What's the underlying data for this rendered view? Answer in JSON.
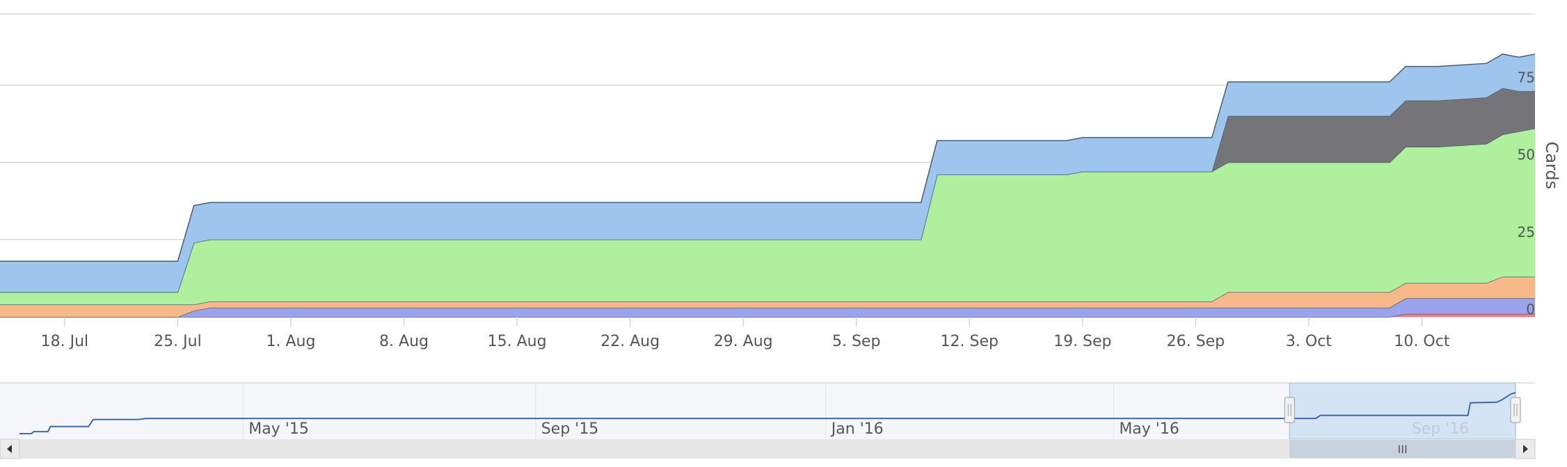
{
  "colors": {
    "backlog": "#9ec5ee",
    "in_progress": "#757478",
    "done": "#aef09e",
    "review": "#f7b98a",
    "blocked": "#9ba3ec",
    "expedite": "#f07d8a",
    "series_stroke": "#4d5a6b",
    "gridline": "#c8c8c8",
    "navigator_line": "#3c6aa8",
    "navigator_mask": "#cfe0f3",
    "scrollbar_track": "#e6e6e6",
    "scrollbar_thumb": "#c8d2de"
  },
  "chart_data": {
    "type": "area",
    "stacking": "normal",
    "ylabel": "Cards",
    "y_ticks": [
      0,
      25,
      50,
      75
    ],
    "ylim": [
      0,
      98
    ],
    "x_range": [
      "2016-07-14",
      "2016-10-17"
    ],
    "x_ticks": [
      "18. Jul",
      "25. Jul",
      "1. Aug",
      "8. Aug",
      "15. Aug",
      "22. Aug",
      "29. Aug",
      "5. Sep",
      "12. Sep",
      "19. Sep",
      "26. Sep",
      "3. Oct",
      "10. Oct"
    ],
    "x": [
      "2016-07-14",
      "2016-07-25",
      "2016-07-26",
      "2016-07-27",
      "2016-09-09",
      "2016-09-10",
      "2016-09-18",
      "2016-09-19",
      "2016-09-27",
      "2016-09-28",
      "2016-10-08",
      "2016-10-09",
      "2016-10-11",
      "2016-10-14",
      "2016-10-15",
      "2016-10-16",
      "2016-10-17"
    ],
    "series": [
      {
        "key": "expedite",
        "values": [
          0,
          0,
          0,
          0,
          0,
          0,
          0,
          0,
          0,
          0,
          0,
          1,
          1,
          1,
          1,
          1,
          1
        ]
      },
      {
        "key": "blocked",
        "values": [
          0,
          0,
          2,
          3,
          3,
          3,
          3,
          3,
          3,
          3,
          3,
          5,
          5,
          5,
          5,
          5,
          5
        ]
      },
      {
        "key": "review",
        "values": [
          4,
          4,
          2,
          2,
          2,
          2,
          2,
          2,
          2,
          5,
          5,
          5,
          5,
          5,
          7,
          7,
          7
        ]
      },
      {
        "key": "done",
        "values": [
          4,
          4,
          20,
          20,
          20,
          41,
          41,
          42,
          42,
          42,
          42,
          44,
          44,
          45,
          46,
          47,
          48
        ]
      },
      {
        "key": "in_progress",
        "values": [
          0,
          0,
          0,
          0,
          0,
          0,
          0,
          0,
          0,
          15,
          15,
          15,
          15,
          15,
          15,
          13,
          12
        ]
      },
      {
        "key": "backlog",
        "values": [
          10,
          10,
          12,
          12,
          12,
          11,
          11,
          11,
          11,
          11,
          11,
          11,
          11,
          11,
          11,
          11,
          12
        ]
      }
    ],
    "navigator": {
      "labels": [
        "May '15",
        "Sep '15",
        "Jan '16",
        "May '16",
        "Sep '16"
      ],
      "range": [
        "2015-01-27",
        "2016-10-17"
      ],
      "selection": [
        "2016-07-14",
        "2016-10-17"
      ],
      "line": {
        "x": [
          "2015-01-27",
          "2015-02-01",
          "2015-02-02",
          "2015-02-08",
          "2015-02-09",
          "2015-02-25",
          "2015-02-27",
          "2015-03-18",
          "2015-03-21",
          "2016-07-25",
          "2016-07-27",
          "2016-09-27",
          "2016-09-28",
          "2016-10-09",
          "2016-10-11",
          "2016-10-15",
          "2016-10-17"
        ],
        "y": [
          0,
          0,
          4,
          4,
          14,
          14,
          28,
          28,
          30,
          30,
          36,
          36,
          61,
          62,
          66,
          78,
          81
        ]
      },
      "scrollbar_grip": "III"
    }
  }
}
